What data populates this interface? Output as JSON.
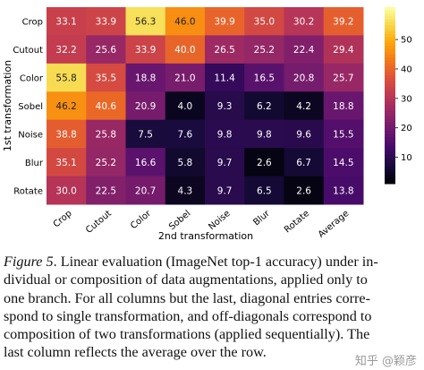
{
  "chart_data": {
    "type": "heatmap",
    "xlabel": "2nd transformation",
    "ylabel": "1st transformation",
    "columns": [
      "Crop",
      "Cutout",
      "Color",
      "Sobel",
      "Noise",
      "Blur",
      "Rotate",
      "Average"
    ],
    "rows": [
      "Crop",
      "Cutout",
      "Color",
      "Sobel",
      "Noise",
      "Blur",
      "Rotate"
    ],
    "values": [
      [
        33.1,
        33.9,
        56.3,
        46.0,
        39.9,
        35.0,
        30.2,
        39.2
      ],
      [
        32.2,
        25.6,
        33.9,
        40.0,
        26.5,
        25.2,
        22.4,
        29.4
      ],
      [
        55.8,
        35.5,
        18.8,
        21.0,
        11.4,
        16.5,
        20.8,
        25.7
      ],
      [
        46.2,
        40.6,
        20.9,
        4.0,
        9.3,
        6.2,
        4.2,
        18.8
      ],
      [
        38.8,
        25.8,
        7.5,
        7.6,
        9.8,
        9.8,
        9.6,
        15.5
      ],
      [
        35.1,
        25.2,
        16.6,
        5.8,
        9.7,
        2.6,
        6.7,
        14.5
      ],
      [
        30.0,
        22.5,
        20.7,
        4.3,
        9.7,
        6.5,
        2.6,
        13.8
      ]
    ],
    "value_labels": [
      [
        "33.1",
        "33.9",
        "56.3",
        "46.0",
        "39.9",
        "35.0",
        "30.2",
        "39.2"
      ],
      [
        "32.2",
        "25.6",
        "33.9",
        "40.0",
        "26.5",
        "25.2",
        "22.4",
        "29.4"
      ],
      [
        "55.8",
        "35.5",
        "18.8",
        "21.0",
        "11.4",
        "16.5",
        "20.8",
        "25.7"
      ],
      [
        "46.2",
        "40.6",
        "20.9",
        "4.0",
        "9.3",
        "6.2",
        "4.2",
        "18.8"
      ],
      [
        "38.8",
        "25.8",
        "7.5",
        "7.6",
        "9.8",
        "9.8",
        "9.6",
        "15.5"
      ],
      [
        "35.1",
        "25.2",
        "16.6",
        "5.8",
        "9.7",
        "2.6",
        "6.7",
        "14.5"
      ],
      [
        "30.0",
        "22.5",
        "20.7",
        "4.3",
        "9.7",
        "6.5",
        "2.6",
        "13.8"
      ]
    ],
    "colormap": "inferno",
    "clim": [
      1,
      61
    ],
    "cticks": [
      10,
      20,
      30,
      40,
      50
    ]
  },
  "caption": {
    "label": "Figure 5",
    "lines": [
      ". Linear evaluation (ImageNet top-1 accuracy) under in-",
      "dividual or composition of data augmentations, applied only to",
      "one branch. For all columns but the last, diagonal entries corre-",
      "spond to single transformation, and off-diagonals correspond to",
      "composition of two transformations (applied sequentially). The",
      "last column reflects the average over the row."
    ]
  },
  "watermark": "知乎 @颖彦"
}
